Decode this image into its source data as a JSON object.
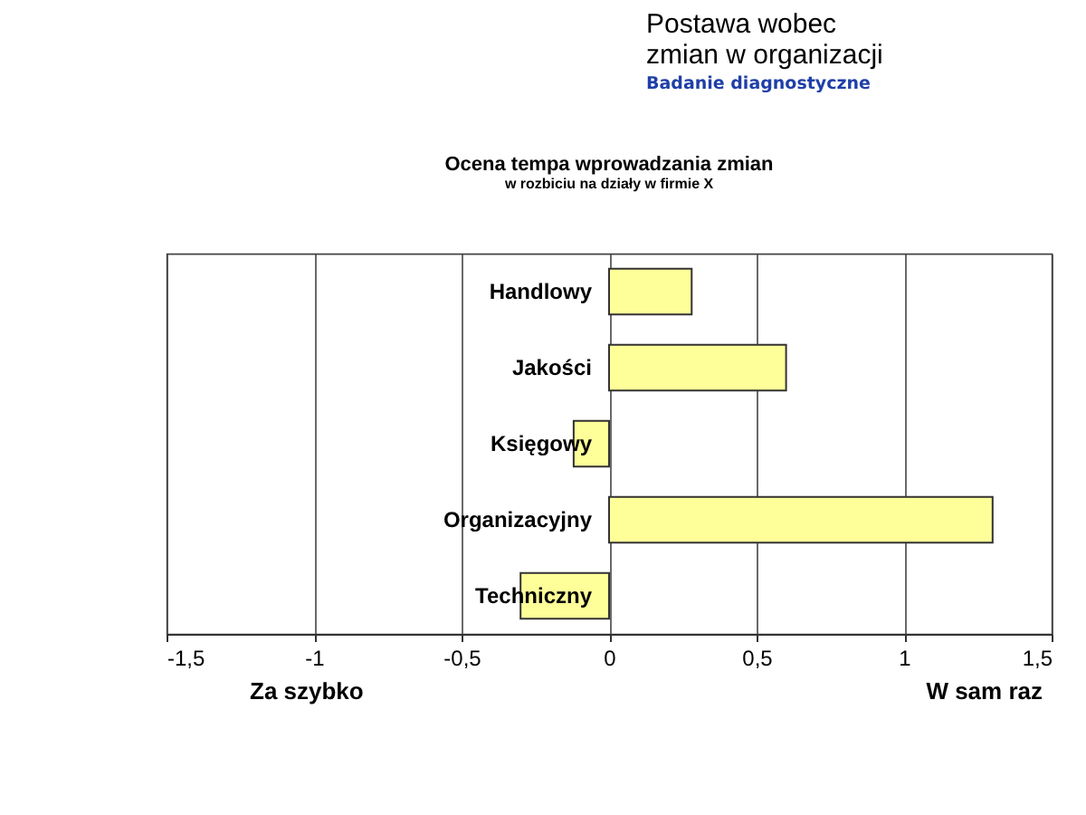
{
  "chart_data": {
    "type": "bar",
    "orientation": "horizontal",
    "title": "Ocena tempa wprowadzania zmian",
    "subtitle": "w rozbiciu na działy w firmie X",
    "categories": [
      "Handlowy",
      "Jakości",
      "Księgowy",
      "Organizacyjny",
      "Techniczny"
    ],
    "values": [
      0.28,
      0.6,
      -0.12,
      1.3,
      -0.3
    ],
    "color": "#ffff99",
    "xlim": [
      -1.5,
      1.5
    ],
    "xticks": [
      {
        "value": -1.5,
        "label": "-1,5"
      },
      -1,
      {
        "value": -0.5,
        "label": "-0,5"
      },
      0,
      {
        "value": 0.5,
        "label": "0,5"
      },
      1,
      {
        "value": 1.5,
        "label": "1,5"
      }
    ],
    "grid": "x",
    "annotations": [
      "Postawa wobec zmian w organizacji",
      "Badanie diagnostyczne",
      "Za szybko",
      "W sam raz"
    ]
  }
}
